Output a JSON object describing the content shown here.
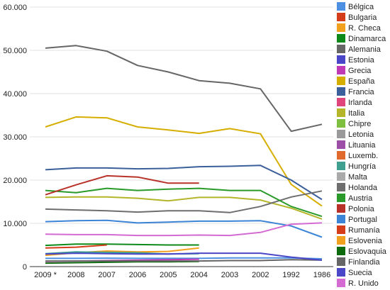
{
  "chart_data": {
    "type": "line",
    "x": [
      "2009 *",
      "2008",
      "2007",
      "2006",
      "2005",
      "2004",
      "2003",
      "2002",
      "1992",
      "1986"
    ],
    "ylim": [
      0,
      60000
    ],
    "y_ticks": [
      "0",
      "10.000",
      "20.000",
      "30.000",
      "40.000",
      "50.000",
      "60.000"
    ],
    "grid": true,
    "legend_position": "right",
    "series": [
      {
        "name": "Bélgica",
        "color": "#4d8fe0",
        "values": [
          1900,
          1900,
          1950,
          1900,
          1900,
          1900,
          2000,
          2000,
          2000,
          1800
        ]
      },
      {
        "name": "Bulgaria",
        "color": "#d43c1a",
        "values": [
          null,
          null,
          null,
          null,
          null,
          null,
          null,
          null,
          null,
          null
        ]
      },
      {
        "name": "R. Checa",
        "color": "#f2a11f",
        "values": [
          2600,
          3200,
          3600,
          3400,
          3500,
          4300,
          null,
          null,
          null,
          null
        ]
      },
      {
        "name": "Dinamarca",
        "color": "#0e8a1a",
        "values": [
          4900,
          5200,
          5200,
          5100,
          5000,
          5000,
          null,
          null,
          null,
          null
        ]
      },
      {
        "name": "Alemania",
        "color": "#666666",
        "values": [
          50500,
          51100,
          49800,
          46500,
          45000,
          43000,
          42400,
          41100,
          31300,
          32900
        ]
      },
      {
        "name": "Estonia",
        "color": "#4a46c8",
        "values": [
          null,
          null,
          null,
          null,
          null,
          null,
          null,
          null,
          null,
          null
        ]
      },
      {
        "name": "Grecia",
        "color": "#c03ab6",
        "values": [
          1200,
          1300,
          1400,
          1500,
          1600,
          1700,
          null,
          null,
          null,
          null
        ]
      },
      {
        "name": "España",
        "color": "#d6ae00",
        "values": [
          32300,
          34600,
          34400,
          32300,
          31600,
          30800,
          31900,
          30700,
          19000,
          14000
        ]
      },
      {
        "name": "Francia",
        "color": "#3b5f9a",
        "values": [
          22400,
          22800,
          22800,
          22600,
          22700,
          23100,
          23200,
          23400,
          20000,
          15500
        ]
      },
      {
        "name": "Irlanda",
        "color": "#e0457b",
        "values": [
          null,
          null,
          null,
          null,
          null,
          null,
          null,
          null,
          null,
          null
        ]
      },
      {
        "name": "Italia",
        "color": "#b5b52a",
        "values": [
          16000,
          16100,
          16100,
          15800,
          15200,
          16000,
          16000,
          15400,
          13500,
          11000
        ]
      },
      {
        "name": "Chipre",
        "color": "#7fbf3f",
        "values": [
          null,
          null,
          null,
          null,
          null,
          null,
          null,
          null,
          null,
          null
        ]
      },
      {
        "name": "Letonia",
        "color": "#9a9a9a",
        "values": [
          null,
          null,
          null,
          null,
          null,
          null,
          null,
          null,
          null,
          null
        ]
      },
      {
        "name": "Lituania",
        "color": "#9d4fa8",
        "values": [
          null,
          null,
          null,
          null,
          null,
          null,
          null,
          null,
          null,
          null
        ]
      },
      {
        "name": "Luxemb.",
        "color": "#e06a2c",
        "values": [
          null,
          null,
          null,
          null,
          null,
          null,
          null,
          null,
          null,
          null
        ]
      },
      {
        "name": "Hungría",
        "color": "#3fa08f",
        "values": [
          3000,
          3400,
          3300,
          3200,
          2900,
          3000,
          null,
          null,
          null,
          null
        ]
      },
      {
        "name": "Malta",
        "color": "#aaaaaa",
        "values": [
          null,
          null,
          null,
          null,
          null,
          null,
          null,
          null,
          null,
          null
        ]
      },
      {
        "name": "Holanda",
        "color": "#6e6e6e",
        "values": [
          13300,
          13100,
          12900,
          12600,
          12900,
          12900,
          12500,
          13900,
          16100,
          17500
        ]
      },
      {
        "name": "Austria",
        "color": "#2a9a2a",
        "values": [
          17600,
          17100,
          18100,
          17600,
          17900,
          18100,
          17600,
          17600,
          13900,
          11600
        ]
      },
      {
        "name": "Polonia",
        "color": "#b8322a",
        "values": [
          16600,
          18900,
          21000,
          20700,
          19300,
          19300,
          null,
          null,
          null,
          null
        ]
      },
      {
        "name": "Portugal",
        "color": "#3b84d6",
        "values": [
          10400,
          10600,
          10700,
          10100,
          10300,
          10500,
          10500,
          10600,
          9400,
          6800
        ]
      },
      {
        "name": "Rumanía",
        "color": "#d43c1a",
        "values": [
          4300,
          4500,
          5000,
          null,
          null,
          null,
          null,
          null,
          null,
          null
        ]
      },
      {
        "name": "Eslovenia",
        "color": "#f2a11f",
        "values": [
          null,
          null,
          null,
          null,
          null,
          null,
          null,
          null,
          null,
          null
        ]
      },
      {
        "name": "Eslovaquia",
        "color": "#0e6b0e",
        "values": [
          800,
          900,
          1000,
          1100,
          1100,
          1200,
          null,
          null,
          null,
          null
        ]
      },
      {
        "name": "Finlandia",
        "color": "#666666",
        "values": [
          1300,
          1300,
          1300,
          1300,
          1300,
          1300,
          1400,
          1400,
          1600,
          1500
        ]
      },
      {
        "name": "Suecia",
        "color": "#4a46c8",
        "values": [
          2900,
          3100,
          3000,
          2900,
          2900,
          3100,
          3100,
          3100,
          2200,
          1500
        ]
      },
      {
        "name": "R. Unido",
        "color": "#d36bd3",
        "values": [
          7500,
          7400,
          7400,
          7200,
          7200,
          7300,
          7200,
          7900,
          9800,
          10100
        ]
      }
    ]
  }
}
